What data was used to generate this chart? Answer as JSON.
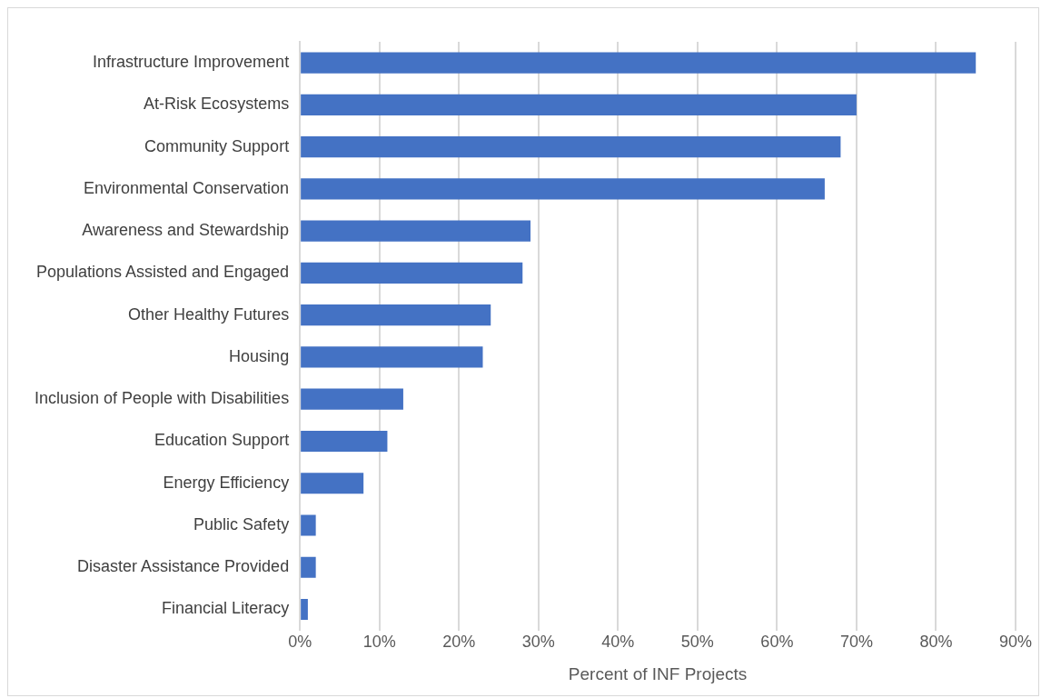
{
  "chart_data": {
    "type": "bar",
    "orientation": "horizontal",
    "xlabel": "Percent of INF Projects",
    "categories": [
      "Infrastructure Improvement",
      "At-Risk Ecosystems",
      "Community Support",
      "Environmental Conservation",
      "Awareness and Stewardship",
      "Populations Assisted and Engaged",
      "Other Healthy Futures",
      "Housing",
      "Inclusion of People with Disabilities",
      "Education Support",
      "Energy Efficiency",
      "Public Safety",
      "Disaster Assistance Provided",
      "Financial Literacy"
    ],
    "values": [
      85,
      70,
      68,
      66,
      29,
      28,
      24,
      23,
      13,
      11,
      8,
      2,
      2,
      1
    ],
    "color": "#4472c4",
    "xlim": [
      0,
      90
    ],
    "xticks": [
      {
        "value": 0,
        "label": "0%"
      },
      {
        "value": 10,
        "label": "10%"
      },
      {
        "value": 20,
        "label": "20%"
      },
      {
        "value": 30,
        "label": "30%"
      },
      {
        "value": 40,
        "label": "40%"
      },
      {
        "value": 50,
        "label": "50%"
      },
      {
        "value": 60,
        "label": "60%"
      },
      {
        "value": 70,
        "label": "70%"
      },
      {
        "value": 80,
        "label": "80%"
      },
      {
        "value": 90,
        "label": "90%"
      }
    ],
    "grid": "x",
    "legend": false
  }
}
